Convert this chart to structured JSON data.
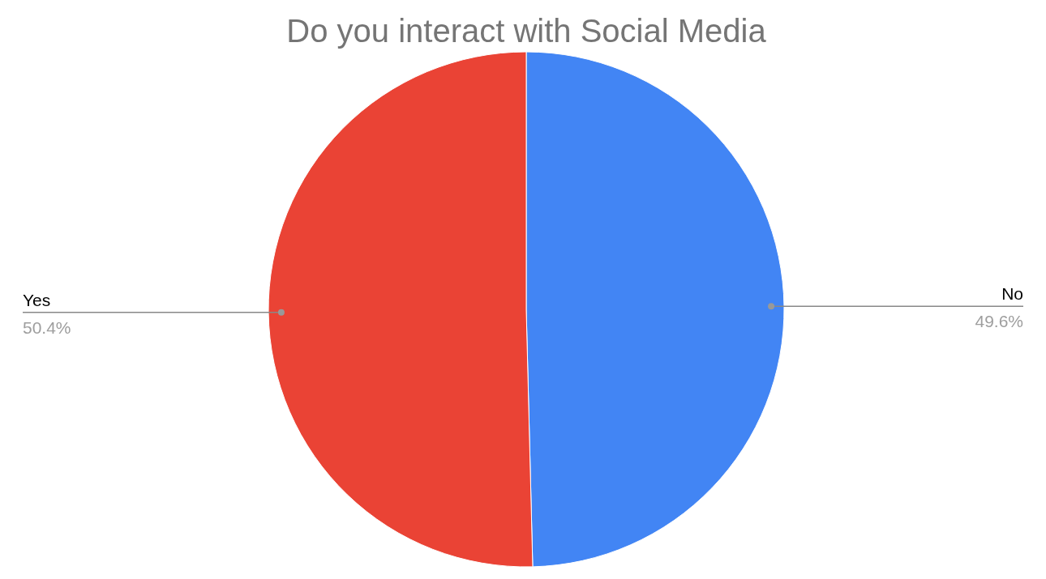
{
  "chart_data": {
    "type": "pie",
    "title": "Do you interact with Social Media",
    "categories": [
      "No",
      "Yes"
    ],
    "values": [
      49.6,
      50.4
    ],
    "colors": [
      "#4285f4",
      "#ea4335"
    ],
    "value_labels": [
      "49.6%",
      "50.4%"
    ],
    "legend": false
  }
}
